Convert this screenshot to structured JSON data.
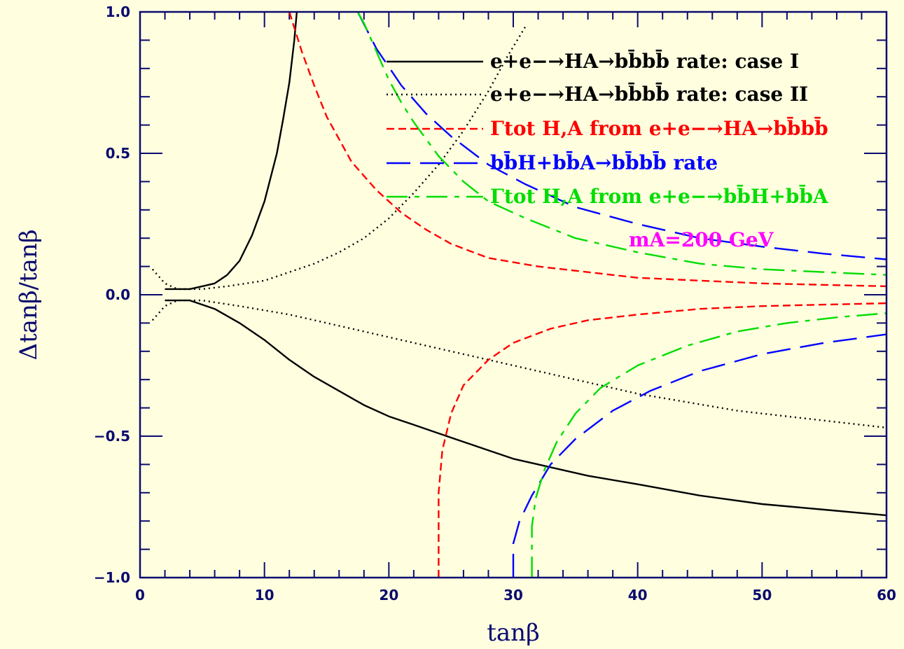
{
  "chart_data": {
    "type": "line",
    "xlabel": "tanβ",
    "ylabel": "Δtanβ/tanβ",
    "xlim": [
      0,
      60
    ],
    "ylim": [
      -1.0,
      1.0
    ],
    "x_ticks": [
      0,
      10,
      20,
      30,
      40,
      50,
      60
    ],
    "y_ticks": [
      -1.0,
      -0.5,
      0.0,
      0.5,
      1.0
    ],
    "x_tick_labels": [
      "0",
      "10",
      "20",
      "30",
      "40",
      "50",
      "60"
    ],
    "y_tick_labels": [
      "−1.0",
      "−0.5",
      "0.0",
      "0.5",
      "1.0"
    ],
    "grid": false,
    "legend_position": "top-right",
    "annotation": "mA=200 GeV",
    "annotation_color": "#ff00ff",
    "colors": {
      "background": "#ffffe0",
      "axes": "#0a0a6e"
    },
    "series": [
      {
        "name": "e+e−→HA→bb̄bb̄ rate: case I",
        "color": "#000000",
        "style": "solid",
        "upper": [
          [
            2,
            0.02
          ],
          [
            4,
            0.02
          ],
          [
            5,
            0.03
          ],
          [
            6,
            0.04
          ],
          [
            7,
            0.07
          ],
          [
            8,
            0.12
          ],
          [
            9,
            0.21
          ],
          [
            10,
            0.33
          ],
          [
            11,
            0.5
          ],
          [
            11.5,
            0.62
          ],
          [
            12,
            0.75
          ],
          [
            12.4,
            0.9
          ],
          [
            12.6,
            1.0
          ]
        ],
        "lower": [
          [
            2,
            -0.02
          ],
          [
            4,
            -0.02
          ],
          [
            6,
            -0.05
          ],
          [
            8,
            -0.1
          ],
          [
            10,
            -0.16
          ],
          [
            12,
            -0.23
          ],
          [
            14,
            -0.29
          ],
          [
            16,
            -0.34
          ],
          [
            18,
            -0.39
          ],
          [
            20,
            -0.43
          ],
          [
            22,
            -0.46
          ],
          [
            24,
            -0.49
          ],
          [
            26,
            -0.52
          ],
          [
            28,
            -0.55
          ],
          [
            30,
            -0.58
          ],
          [
            33,
            -0.61
          ],
          [
            36,
            -0.64
          ],
          [
            40,
            -0.67
          ],
          [
            45,
            -0.71
          ],
          [
            50,
            -0.74
          ],
          [
            55,
            -0.76
          ],
          [
            60,
            -0.78
          ]
        ]
      },
      {
        "name": "e+e−→HA→bb̄bb̄ rate: case II",
        "color": "#000000",
        "style": "dotted",
        "upper": [
          [
            1,
            0.09
          ],
          [
            2,
            0.04
          ],
          [
            3,
            0.02
          ],
          [
            5,
            0.02
          ],
          [
            7,
            0.03
          ],
          [
            10,
            0.05
          ],
          [
            12,
            0.08
          ],
          [
            14,
            0.11
          ],
          [
            16,
            0.15
          ],
          [
            18,
            0.2
          ],
          [
            20,
            0.27
          ],
          [
            22,
            0.36
          ],
          [
            24,
            0.46
          ],
          [
            26,
            0.58
          ],
          [
            28,
            0.72
          ],
          [
            29.5,
            0.84
          ],
          [
            31,
            0.95
          ]
        ],
        "lower": [
          [
            1,
            -0.09
          ],
          [
            2,
            -0.04
          ],
          [
            3,
            -0.02
          ],
          [
            5,
            -0.02
          ],
          [
            8,
            -0.04
          ],
          [
            12,
            -0.07
          ],
          [
            16,
            -0.11
          ],
          [
            20,
            -0.15
          ],
          [
            24,
            -0.19
          ],
          [
            28,
            -0.23
          ],
          [
            32,
            -0.27
          ],
          [
            36,
            -0.31
          ],
          [
            40,
            -0.35
          ],
          [
            44,
            -0.38
          ],
          [
            48,
            -0.41
          ],
          [
            52,
            -0.43
          ],
          [
            56,
            -0.45
          ],
          [
            60,
            -0.47
          ]
        ]
      },
      {
        "name": "Γtot H,A from e+e−→HA→bb̄bb̄",
        "color": "#ff0000",
        "style": "dashed",
        "upper": [
          [
            12,
            1.0
          ],
          [
            13,
            0.86
          ],
          [
            14,
            0.74
          ],
          [
            15,
            0.63
          ],
          [
            17,
            0.47
          ],
          [
            19,
            0.37
          ],
          [
            21,
            0.29
          ],
          [
            23,
            0.23
          ],
          [
            25,
            0.18
          ],
          [
            28,
            0.13
          ],
          [
            32,
            0.1
          ],
          [
            36,
            0.08
          ],
          [
            40,
            0.06
          ],
          [
            45,
            0.05
          ],
          [
            50,
            0.04
          ],
          [
            55,
            0.035
          ],
          [
            60,
            0.03
          ]
        ],
        "lower": [
          [
            24,
            -1.0
          ],
          [
            24,
            -0.7
          ],
          [
            24.3,
            -0.55
          ],
          [
            25,
            -0.42
          ],
          [
            26,
            -0.32
          ],
          [
            28,
            -0.23
          ],
          [
            30,
            -0.17
          ],
          [
            33,
            -0.12
          ],
          [
            36,
            -0.09
          ],
          [
            40,
            -0.07
          ],
          [
            45,
            -0.05
          ],
          [
            50,
            -0.04
          ],
          [
            55,
            -0.035
          ],
          [
            60,
            -0.03
          ]
        ]
      },
      {
        "name": "bb̄H+bb̄A→bb̄bb̄ rate",
        "color": "#0000ff",
        "style": "longdash",
        "upper": [
          [
            17.5,
            1.0
          ],
          [
            19,
            0.87
          ],
          [
            21,
            0.74
          ],
          [
            23,
            0.64
          ],
          [
            25,
            0.56
          ],
          [
            28,
            0.46
          ],
          [
            31,
            0.39
          ],
          [
            35,
            0.31
          ],
          [
            40,
            0.25
          ],
          [
            45,
            0.2
          ],
          [
            50,
            0.17
          ],
          [
            55,
            0.145
          ],
          [
            60,
            0.125
          ]
        ],
        "lower": [
          [
            30,
            -1.0
          ],
          [
            30,
            -0.88
          ],
          [
            30.5,
            -0.8
          ],
          [
            31.5,
            -0.71
          ],
          [
            33,
            -0.6
          ],
          [
            35,
            -0.51
          ],
          [
            38,
            -0.41
          ],
          [
            41,
            -0.34
          ],
          [
            45,
            -0.27
          ],
          [
            50,
            -0.21
          ],
          [
            55,
            -0.17
          ],
          [
            60,
            -0.14
          ]
        ]
      },
      {
        "name": "Γtot H,A from e+e−→bb̄H+bb̄A",
        "color": "#00dd00",
        "style": "dashdot",
        "upper": [
          [
            17.5,
            1.0
          ],
          [
            18,
            0.96
          ],
          [
            19,
            0.86
          ],
          [
            20,
            0.76
          ],
          [
            21,
            0.68
          ],
          [
            22,
            0.61
          ],
          [
            24,
            0.49
          ],
          [
            26,
            0.4
          ],
          [
            28,
            0.33
          ],
          [
            31,
            0.27
          ],
          [
            35,
            0.2
          ],
          [
            40,
            0.15
          ],
          [
            45,
            0.11
          ],
          [
            50,
            0.09
          ],
          [
            55,
            0.08
          ],
          [
            60,
            0.07
          ]
        ],
        "lower": [
          [
            31.5,
            -1.0
          ],
          [
            31.5,
            -0.82
          ],
          [
            31.8,
            -0.72
          ],
          [
            32.5,
            -0.62
          ],
          [
            33.5,
            -0.52
          ],
          [
            35,
            -0.42
          ],
          [
            37,
            -0.33
          ],
          [
            40,
            -0.25
          ],
          [
            44,
            -0.18
          ],
          [
            48,
            -0.13
          ],
          [
            52,
            -0.1
          ],
          [
            56,
            -0.08
          ],
          [
            60,
            -0.065
          ]
        ]
      }
    ]
  }
}
